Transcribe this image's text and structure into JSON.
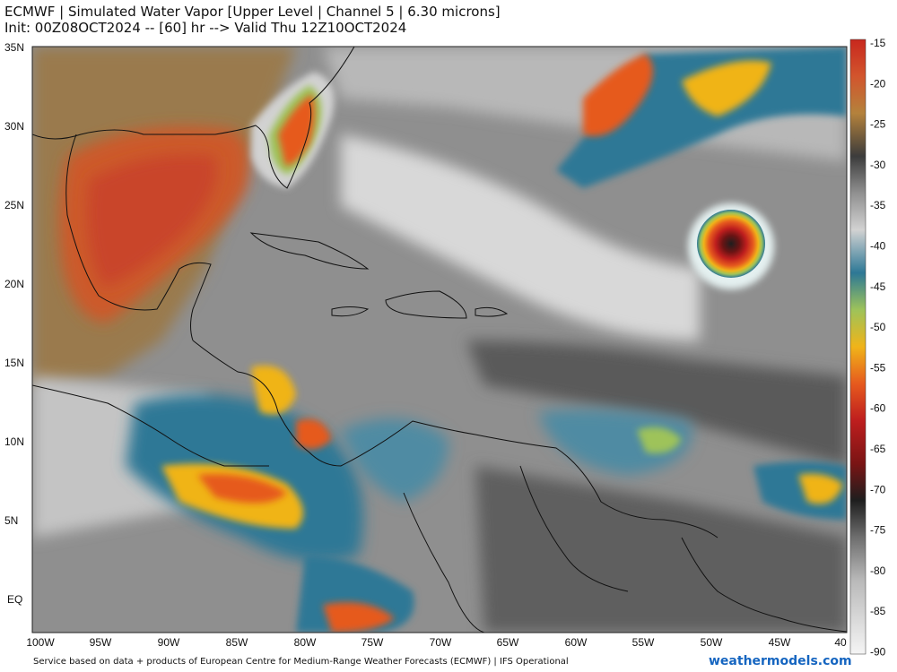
{
  "header": {
    "title": "ECMWF | Simulated Water Vapor [Upper Level | Channel 5 | 6.30 microns]",
    "subtitle": "Init: 00Z08OCT2024 -- [60] hr --> Valid Thu 12Z10OCT2024"
  },
  "map": {
    "region": "Gulf of Mexico, Caribbean and tropical Atlantic",
    "lat_ticks": [
      "35N",
      "30N",
      "25N",
      "20N",
      "15N",
      "10N",
      "5N",
      "EQ"
    ],
    "lon_ticks": [
      "100W",
      "95W",
      "90W",
      "85W",
      "80W",
      "75W",
      "70W",
      "65W",
      "60W",
      "55W",
      "50W",
      "45W",
      "40"
    ],
    "features": [
      "large dry (warm brightness temperature) area over the Gulf of Mexico",
      "moisture plume over Florida",
      "compact tropical cyclone core near 21N 48W",
      "convection over Central America and northern South America"
    ]
  },
  "colorbar": {
    "ticks": [
      "-15",
      "-20",
      "-25",
      "-30",
      "-35",
      "-40",
      "-45",
      "-50",
      "-55",
      "-60",
      "-65",
      "-70",
      "-75",
      "-80",
      "-85",
      "-90"
    ],
    "colors": [
      "#c8281e",
      "#d2552d",
      "#b4823c",
      "#3c3c3c",
      "#909090",
      "#d2d2d2",
      "#2d7896",
      "#9ec35a",
      "#f0b419",
      "#e65a1e",
      "#be1e1e",
      "#7a1414",
      "#1e1e1e",
      "#6e6e6e",
      "#b9b9b9",
      "#f5f5f5"
    ]
  },
  "footer": {
    "source": "Service based on data + products of European Centre for Medium-Range Weather Forecasts (ECMWF) | IFS Operational",
    "brand": "weathermodels.com"
  }
}
